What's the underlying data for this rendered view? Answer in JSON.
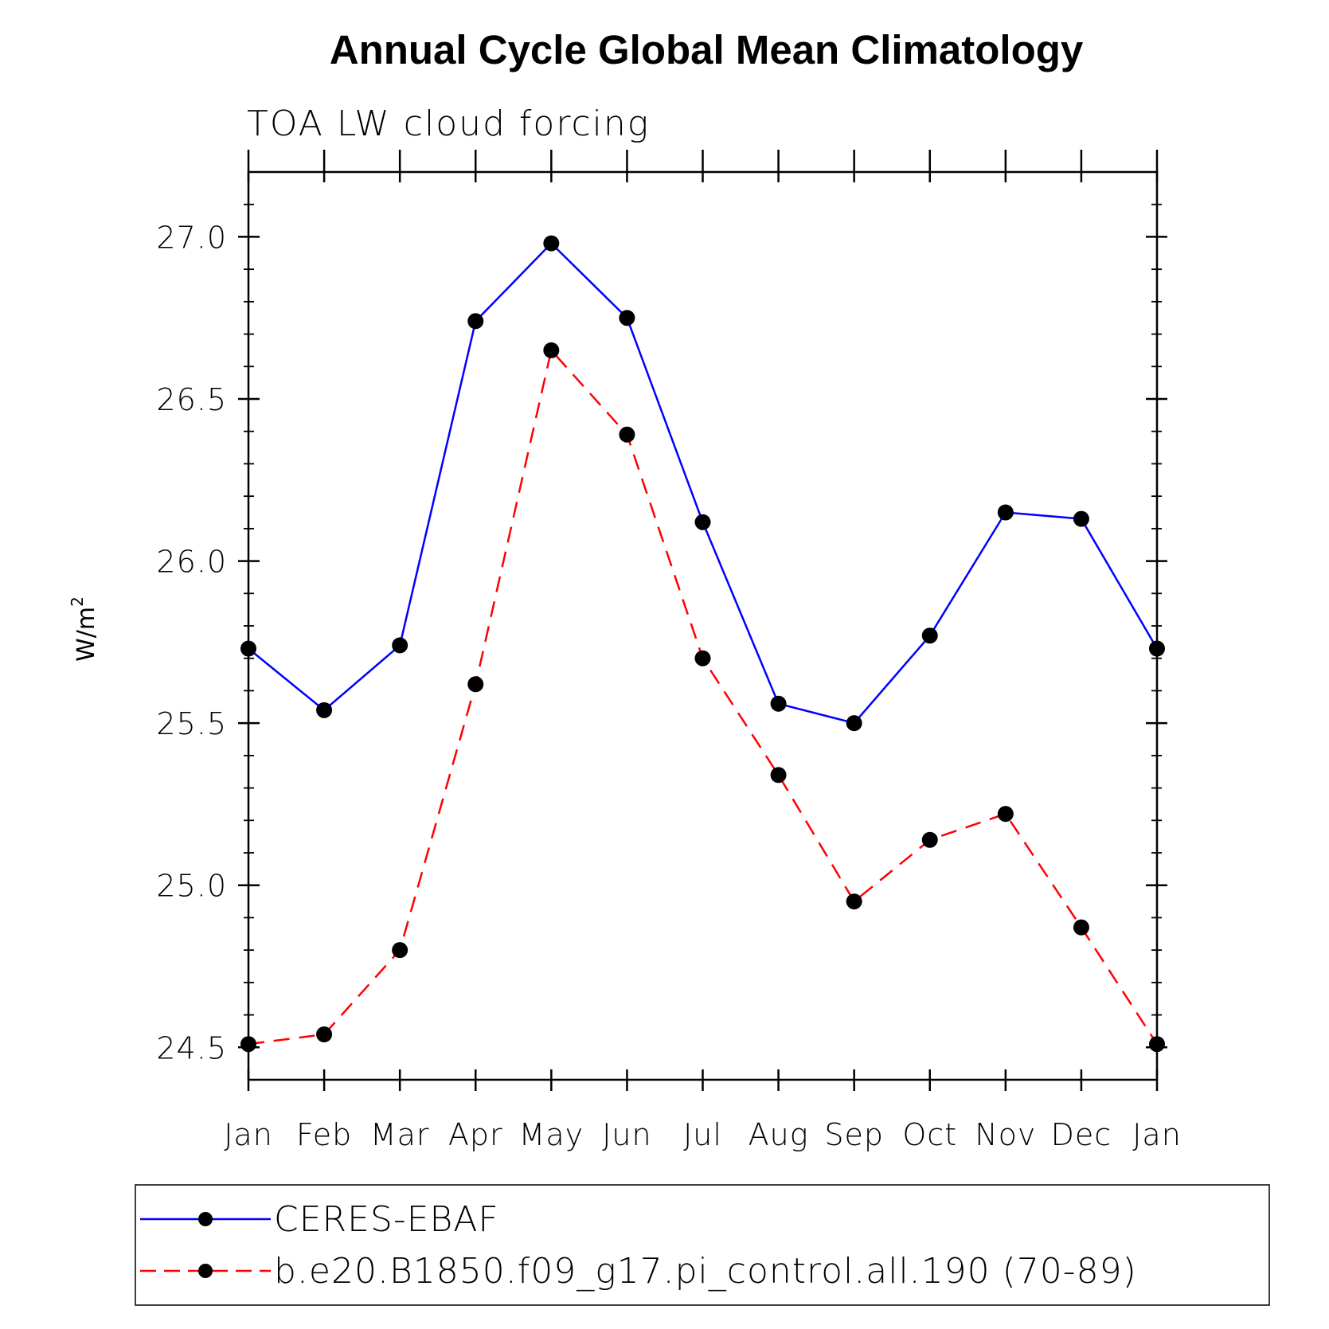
{
  "colors": {
    "series_1": "#0000ff",
    "series_2": "#ff0000",
    "marker": "#000000",
    "axis": "#000000"
  },
  "chart_data": {
    "type": "line",
    "title": "Annual Cycle Global Mean Climatology",
    "subtitle": "TOA LW cloud forcing",
    "xlabel": "",
    "ylabel": "W/m",
    "ylabel_superscript": "2",
    "categories": [
      "Jan",
      "Feb",
      "Mar",
      "Apr",
      "May",
      "Jun",
      "Jul",
      "Aug",
      "Sep",
      "Oct",
      "Nov",
      "Dec",
      "Jan"
    ],
    "ylim": [
      24.4,
      27.2
    ],
    "yticks": [
      24.5,
      25.0,
      25.5,
      26.0,
      26.5,
      27.0
    ],
    "ytick_labels": [
      "24.5",
      "25.0",
      "25.5",
      "26.0",
      "26.5",
      "27.0"
    ],
    "yminor_step": 0.1,
    "series": [
      {
        "name": "CERES-EBAF",
        "style": "solid",
        "marker": "circle",
        "values": [
          25.73,
          25.54,
          25.74,
          26.74,
          26.98,
          26.75,
          26.12,
          25.56,
          25.5,
          25.77,
          26.15,
          26.13,
          25.73
        ]
      },
      {
        "name": "b.e20.B1850.f09_g17.pi_control.all.190 (70-89)",
        "style": "dashed",
        "marker": "circle",
        "values": [
          24.51,
          24.54,
          24.8,
          25.62,
          26.65,
          26.39,
          25.7,
          25.34,
          24.95,
          25.14,
          25.22,
          24.87,
          24.51
        ]
      }
    ],
    "legend_position": "bottom"
  }
}
